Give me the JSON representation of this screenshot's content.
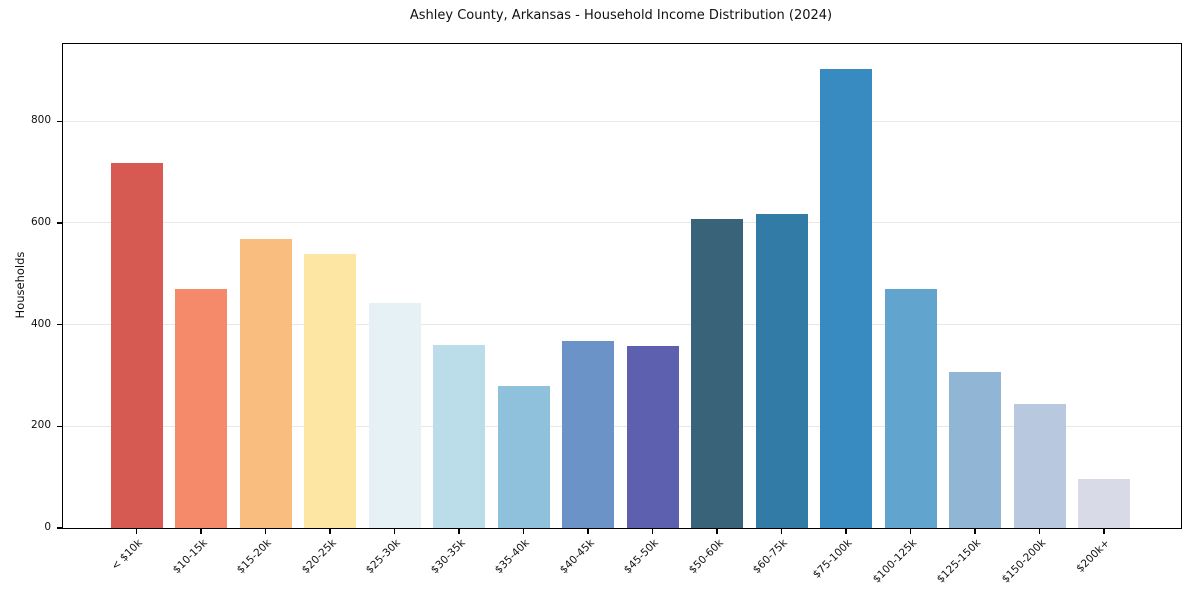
{
  "chart_data": {
    "type": "bar",
    "title": "Ashley County, Arkansas - Household Income Distribution (2024)",
    "xlabel": "",
    "ylabel": "Households",
    "categories": [
      "< $10k",
      "$10-15k",
      "$15-20k",
      "$20-25k",
      "$25-30k",
      "$30-35k",
      "$35-40k",
      "$40-45k",
      "$45-50k",
      "$50-60k",
      "$60-75k",
      "$75-100k",
      "$100-125k",
      "$125-150k",
      "$150-200k",
      "$200k+"
    ],
    "values": [
      718,
      471,
      568,
      538,
      443,
      359,
      280,
      368,
      358,
      607,
      618,
      903,
      470,
      306,
      243,
      97
    ],
    "bar_colors": [
      "#d65a52",
      "#f58a6b",
      "#fabd80",
      "#fde5a4",
      "#e6f1f6",
      "#badde9",
      "#8fc0dc",
      "#6c93c7",
      "#5c60ae",
      "#386379",
      "#337ba7",
      "#388bc1",
      "#61a4cd",
      "#90b5d5",
      "#b8c9df",
      "#d9dae8"
    ],
    "yticks": [
      0,
      200,
      400,
      600,
      800
    ],
    "ylim": [
      0,
      952
    ],
    "grid": "horizontal",
    "legend": "none",
    "grid_color": "#e8e8e8",
    "spine_color": "#000000",
    "background_color": "#ffffff",
    "x_label_rotation_deg": 45
  }
}
